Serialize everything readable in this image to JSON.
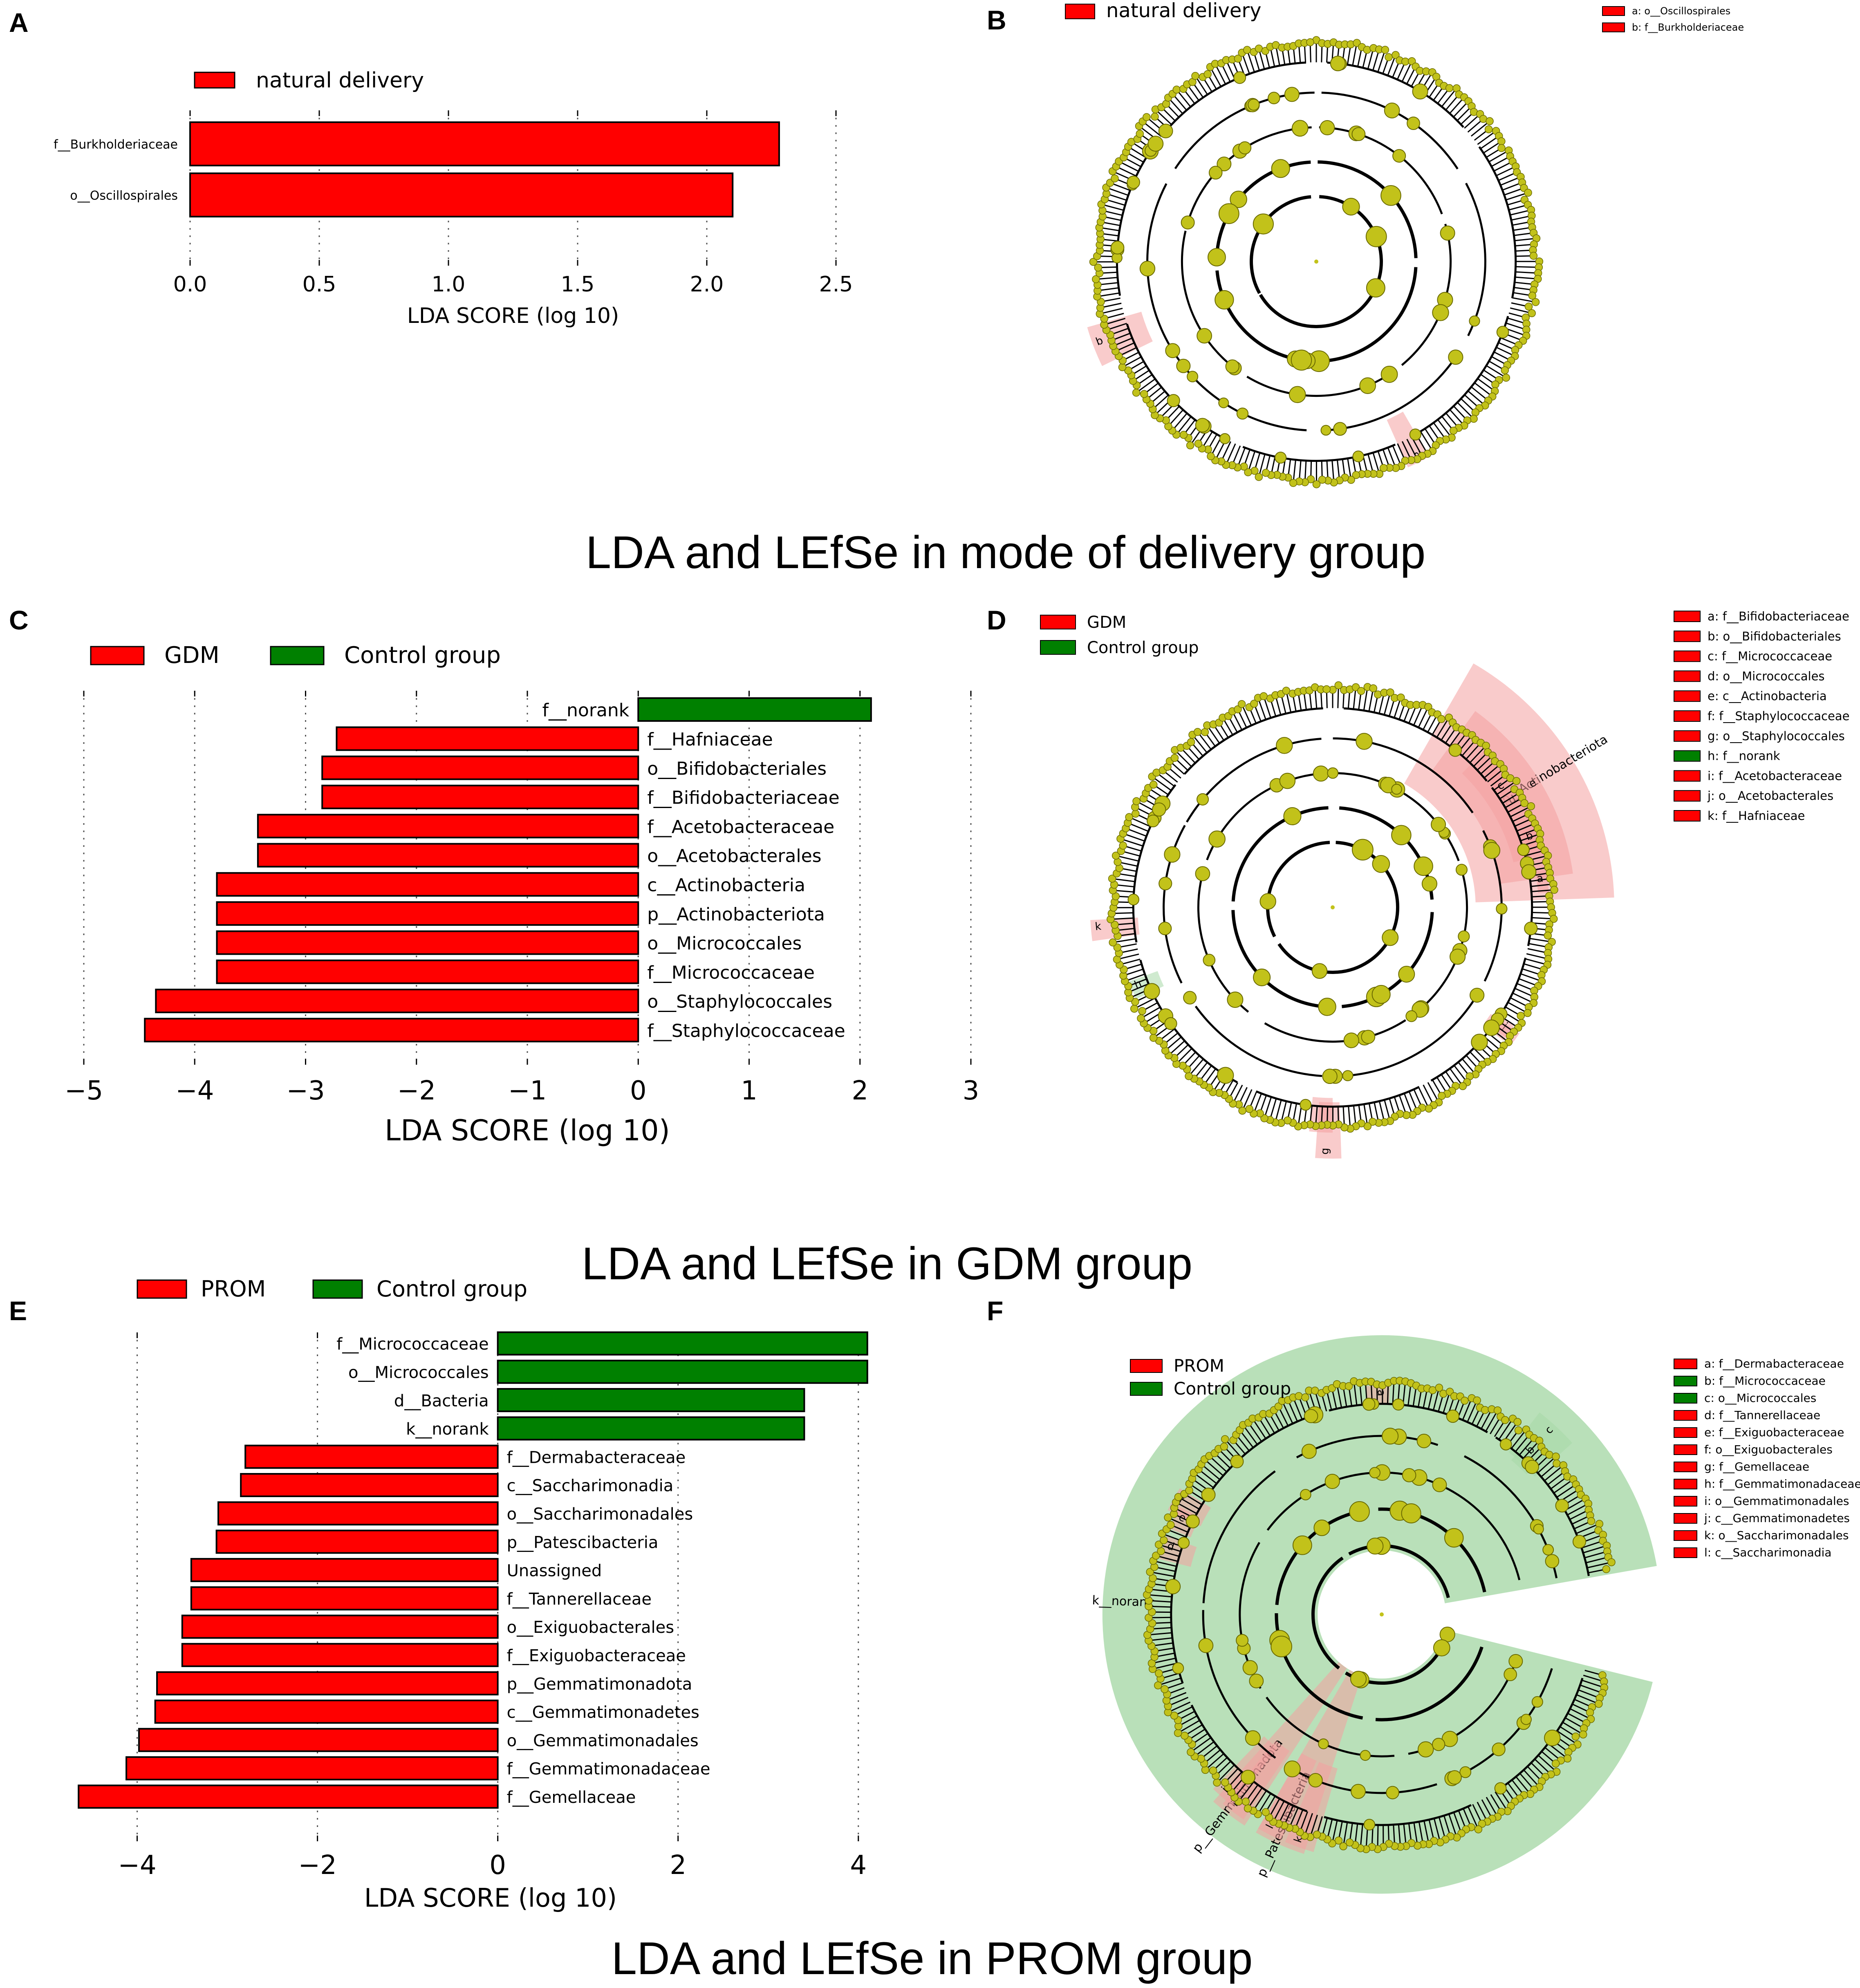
{
  "colors": {
    "red": "#ff0000",
    "green": "#008000",
    "node": "#c2c21a",
    "redShade": "#f4a0a0",
    "greenShade": "#a8d8a8",
    "grid": "#555555"
  },
  "panel_labels": [
    "A",
    "B",
    "C",
    "D",
    "E",
    "F"
  ],
  "captions": [
    "LDA and LEfSe in mode of delivery group",
    "LDA and LEfSe in GDM group",
    "LDA and LEfSe in PROM group"
  ],
  "chart_data": [
    {
      "id": "A",
      "type": "bar",
      "orientation": "horizontal",
      "legend": [
        {
          "label": "natural delivery",
          "color": "#ff0000"
        }
      ],
      "xlabel": "LDA SCORE (log 10)",
      "xlim": [
        0,
        2.5
      ],
      "xticks": [
        0.0,
        0.5,
        1.0,
        1.5,
        2.0,
        2.5
      ],
      "xtick_labels": [
        "0.0",
        "0.5",
        "1.0",
        "1.5",
        "2.0",
        "2.5"
      ],
      "categories": [
        "f__Burkholderiaceae",
        "o__Oscillospirales"
      ],
      "values": [
        2.28,
        2.1
      ],
      "groups": [
        "natural delivery",
        "natural delivery"
      ]
    },
    {
      "id": "C",
      "type": "bar",
      "orientation": "horizontal",
      "legend": [
        {
          "label": "GDM",
          "color": "#ff0000"
        },
        {
          "label": "Control group",
          "color": "#008000"
        }
      ],
      "xlabel": "LDA SCORE (log 10)",
      "xlim": [
        -5,
        3
      ],
      "xticks": [
        -5,
        -4,
        -3,
        -2,
        -1,
        0,
        1,
        2,
        3
      ],
      "xtick_labels": [
        "−5",
        "−4",
        "−3",
        "−2",
        "−1",
        "0",
        "1",
        "2",
        "3"
      ],
      "categories": [
        "f__norank",
        "f__Hafniaceae",
        "o__Bifidobacteriales",
        "f__Bifidobacteriaceae",
        "f__Acetobacteraceae",
        "o__Acetobacterales",
        "c__Actinobacteria",
        "p__Actinobacteriota",
        "o__Micrococcales",
        "f__Micrococcaceae",
        "o__Staphylococcales",
        "f__Staphylococcaceae"
      ],
      "values": [
        2.1,
        -2.72,
        -2.85,
        -2.85,
        -3.43,
        -3.43,
        -3.8,
        -3.8,
        -3.8,
        -3.8,
        -4.35,
        -4.45
      ],
      "groups": [
        "Control group",
        "GDM",
        "GDM",
        "GDM",
        "GDM",
        "GDM",
        "GDM",
        "GDM",
        "GDM",
        "GDM",
        "GDM",
        "GDM"
      ]
    },
    {
      "id": "E",
      "type": "bar",
      "orientation": "horizontal",
      "legend": [
        {
          "label": "PROM",
          "color": "#ff0000"
        },
        {
          "label": "Control group",
          "color": "#008000"
        }
      ],
      "xlabel": "LDA SCORE (log 10)",
      "xlim": [
        -5,
        4.5
      ],
      "xticks": [
        -4,
        -2,
        0,
        2,
        4
      ],
      "xtick_labels": [
        "−4",
        "−2",
        "0",
        "2",
        "4"
      ],
      "categories": [
        "f__Micrococcaceae",
        "o__Micrococcales",
        "d__Bacteria",
        "k__norank",
        "f__Dermabacteraceae",
        "c__Saccharimonadia",
        "o__Saccharimonadales",
        "p__Patescibacteria",
        "Unassigned",
        "f__Tannerellaceae",
        "o__Exiguobacterales",
        "f__Exiguobacteraceae",
        "p__Gemmatimonadota",
        "c__Gemmatimonadetes",
        "o__Gemmatimonadales",
        "f__Gemmatimonadaceae",
        "f__Gemellaceae"
      ],
      "values": [
        4.1,
        4.1,
        3.4,
        3.4,
        -2.8,
        -2.85,
        -3.1,
        -3.12,
        -3.4,
        -3.4,
        -3.5,
        -3.5,
        -3.78,
        -3.8,
        -3.98,
        -4.12,
        -4.65
      ],
      "groups": [
        "Control group",
        "Control group",
        "Control group",
        "Control group",
        "PROM",
        "PROM",
        "PROM",
        "PROM",
        "PROM",
        "PROM",
        "PROM",
        "PROM",
        "PROM",
        "PROM",
        "PROM",
        "PROM",
        "PROM"
      ]
    },
    {
      "id": "B",
      "type": "cladogram",
      "legend": [
        {
          "label": "natural delivery",
          "color": "#ff0000"
        }
      ],
      "key": [
        {
          "label": "a: o__Oscillospirales",
          "color": "#ff0000"
        },
        {
          "label": "b: f__Burkholderiaceae",
          "color": "#ff0000"
        }
      ],
      "highlights": [
        {
          "label": "a",
          "color": "#ff0000"
        },
        {
          "label": "b",
          "color": "#ff0000"
        }
      ]
    },
    {
      "id": "D",
      "type": "cladogram",
      "legend": [
        {
          "label": "GDM",
          "color": "#ff0000"
        },
        {
          "label": "Control group",
          "color": "#008000"
        }
      ],
      "key": [
        {
          "label": "a: f__Bifidobacteriaceae",
          "color": "#ff0000"
        },
        {
          "label": "b: o__Bifidobacteriales",
          "color": "#ff0000"
        },
        {
          "label": "c: f__Micrococcaceae",
          "color": "#ff0000"
        },
        {
          "label": "d: o__Micrococcales",
          "color": "#ff0000"
        },
        {
          "label": "e: c__Actinobacteria",
          "color": "#ff0000"
        },
        {
          "label": "f: f__Staphylococcaceae",
          "color": "#ff0000"
        },
        {
          "label": "g: o__Staphylococcales",
          "color": "#ff0000"
        },
        {
          "label": "h: f__norank",
          "color": "#008000"
        },
        {
          "label": "i: f__Acetobacteraceae",
          "color": "#ff0000"
        },
        {
          "label": "j: o__Acetobacterales",
          "color": "#ff0000"
        },
        {
          "label": "k: f__Hafniaceae",
          "color": "#ff0000"
        }
      ],
      "highlights": [
        {
          "label": "p__Actinobacteriota",
          "color": "#ff0000"
        },
        {
          "label": "e",
          "color": "#ff0000"
        },
        {
          "label": "d",
          "color": "#ff0000"
        },
        {
          "label": "c",
          "color": "#ff0000"
        },
        {
          "label": "b",
          "color": "#ff0000"
        },
        {
          "label": "a",
          "color": "#ff0000"
        },
        {
          "label": "g",
          "color": "#ff0000"
        },
        {
          "label": "f",
          "color": "#ff0000"
        },
        {
          "label": "h",
          "color": "#008000"
        },
        {
          "label": "k",
          "color": "#ff0000"
        },
        {
          "label": "j",
          "color": "#ff0000"
        },
        {
          "label": "i",
          "color": "#ff0000"
        }
      ]
    },
    {
      "id": "F",
      "type": "cladogram",
      "legend": [
        {
          "label": "PROM",
          "color": "#ff0000"
        },
        {
          "label": "Control group",
          "color": "#008000"
        }
      ],
      "key": [
        {
          "label": "a: f__Dermabacteraceae",
          "color": "#ff0000"
        },
        {
          "label": "b: f__Micrococcaceae",
          "color": "#008000"
        },
        {
          "label": "c: o__Micrococcales",
          "color": "#008000"
        },
        {
          "label": "d: f__Tannerellaceae",
          "color": "#ff0000"
        },
        {
          "label": "e: f__Exiguobacteraceae",
          "color": "#ff0000"
        },
        {
          "label": "f: o__Exiguobacterales",
          "color": "#ff0000"
        },
        {
          "label": "g: f__Gemellaceae",
          "color": "#ff0000"
        },
        {
          "label": "h: f__Gemmatimonadaceae",
          "color": "#ff0000"
        },
        {
          "label": "i: o__Gemmatimonadales",
          "color": "#ff0000"
        },
        {
          "label": "j: c__Gemmatimonadetes",
          "color": "#ff0000"
        },
        {
          "label": "k: o__Saccharimonadales",
          "color": "#ff0000"
        },
        {
          "label": "l: c__Saccharimonadia",
          "color": "#ff0000"
        }
      ],
      "highlights": [
        {
          "label": "k__norank",
          "color": "#008000"
        },
        {
          "label": "p__Patescibacteria",
          "color": "#ff0000"
        },
        {
          "label": "p__Gemmatimonadota",
          "color": "#ff0000"
        },
        {
          "label": "c",
          "color": "#008000"
        },
        {
          "label": "b",
          "color": "#008000"
        },
        {
          "label": "f",
          "color": "#ff0000"
        },
        {
          "label": "e",
          "color": "#ff0000"
        },
        {
          "label": "d",
          "color": "#ff0000"
        },
        {
          "label": "a",
          "color": "#ff0000"
        },
        {
          "label": "k",
          "color": "#ff0000"
        },
        {
          "label": "l",
          "color": "#ff0000"
        },
        {
          "label": "i",
          "color": "#ff0000"
        },
        {
          "label": "j",
          "color": "#ff0000"
        }
      ]
    }
  ]
}
